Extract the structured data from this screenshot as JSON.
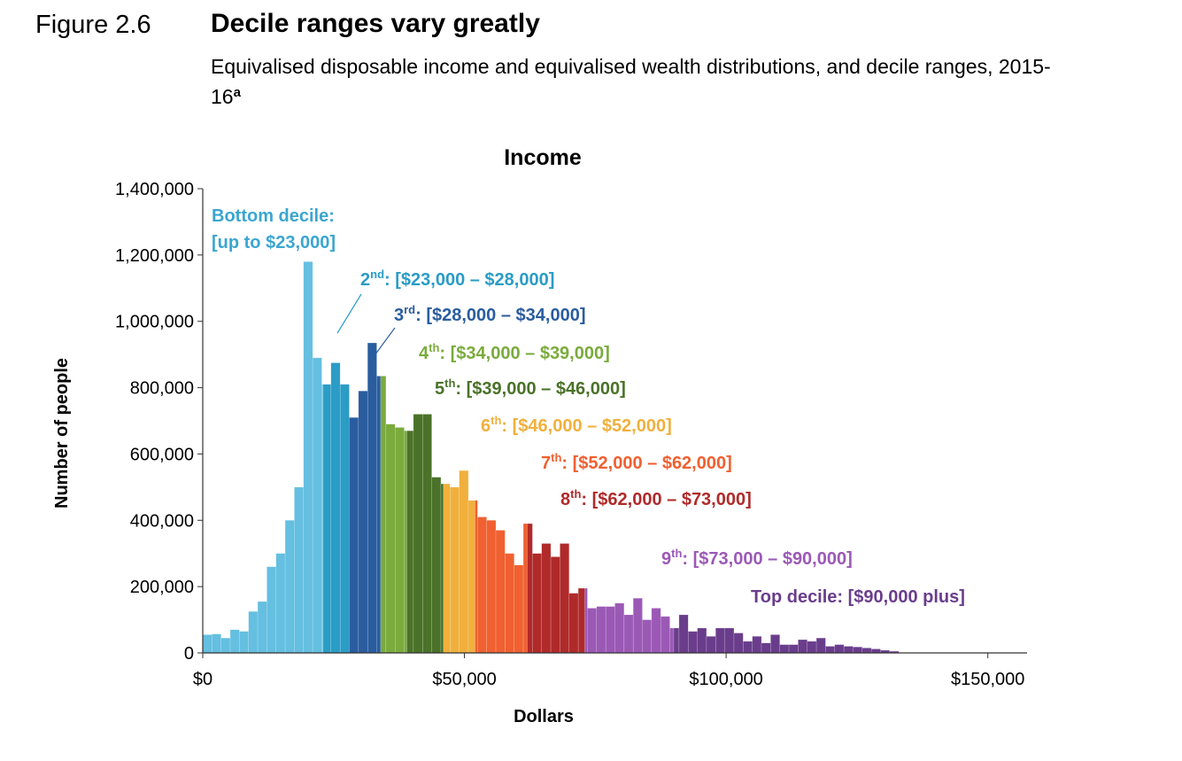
{
  "figure": {
    "number": "Figure 2.6",
    "title": "Decile ranges vary greatly",
    "subtitle": "Equivalised disposable income and equivalised wealth distributions, and decile ranges, 2015-16",
    "footnote_marker": "a"
  },
  "chart_data": {
    "type": "bar",
    "title": "Income",
    "xlabel": "Dollars",
    "ylabel": "Number of people",
    "xlim": [
      0,
      157500
    ],
    "ylim": [
      0,
      1400000
    ],
    "bin_width": 1750,
    "x_ticks": [
      {
        "value": 0,
        "label": "$0"
      },
      {
        "value": 50000,
        "label": "$50,000"
      },
      {
        "value": 100000,
        "label": "$100,000"
      },
      {
        "value": 150000,
        "label": "$150,000"
      }
    ],
    "y_ticks": [
      {
        "value": 0,
        "label": "0"
      },
      {
        "value": 200000,
        "label": "200,000"
      },
      {
        "value": 400000,
        "label": "400,000"
      },
      {
        "value": 600000,
        "label": "600,000"
      },
      {
        "value": 800000,
        "label": "800,000"
      },
      {
        "value": 1000000,
        "label": "1,000,000"
      },
      {
        "value": 1200000,
        "label": "1,200,000"
      },
      {
        "value": 1400000,
        "label": "1,400,000"
      }
    ],
    "deciles": [
      {
        "name": "Bottom decile",
        "range": "[up to $23,000]",
        "start": 0,
        "end": 23000,
        "color": "#64bfe0"
      },
      {
        "name": "2nd",
        "range": "[$23,000 – $28,000]",
        "start": 23000,
        "end": 28000,
        "color": "#2a9cc6"
      },
      {
        "name": "3rd",
        "range": "[$28,000 – $34,000]",
        "start": 28000,
        "end": 34000,
        "color": "#2a5d9f"
      },
      {
        "name": "4th",
        "range": "[$34,000 – $39,000]",
        "start": 34000,
        "end": 39000,
        "color": "#7aab3c"
      },
      {
        "name": "5th",
        "range": "[$39,000 – $46,000]",
        "start": 39000,
        "end": 46000,
        "color": "#4a7228"
      },
      {
        "name": "6th",
        "range": "[$46,000 – $52,000]",
        "start": 46000,
        "end": 52000,
        "color": "#f1b03c"
      },
      {
        "name": "7th",
        "range": "[$52,000 – $62,000]",
        "start": 52000,
        "end": 62000,
        "color": "#f06030"
      },
      {
        "name": "8th",
        "range": "[$62,000 – $73,000]",
        "start": 62000,
        "end": 73000,
        "color": "#b02a2a"
      },
      {
        "name": "9th",
        "range": "[$73,000 – $90,000]",
        "start": 73000,
        "end": 90000,
        "color": "#9b59b6"
      },
      {
        "name": "Top decile",
        "range": "[$90,000 plus]",
        "start": 90000,
        "end": 160000,
        "color": "#6a3d8c"
      }
    ],
    "decile_labels": [
      {
        "prefix": "Bottom decile:",
        "sup": "",
        "text": "[up to $23,000]",
        "color": "#3aa6d0"
      },
      {
        "prefix": "2",
        "sup": "nd",
        "text": ": [$23,000 – $28,000]",
        "color": "#2a9cc6"
      },
      {
        "prefix": "3",
        "sup": "rd",
        "text": ": [$28,000 – $34,000]",
        "color": "#2a5d9f"
      },
      {
        "prefix": "4",
        "sup": "th",
        "text": ": [$34,000 – $39,000]",
        "color": "#7aab3c"
      },
      {
        "prefix": "5",
        "sup": "th",
        "text": ": [$39,000 – $46,000]",
        "color": "#4a7228"
      },
      {
        "prefix": "6",
        "sup": "th",
        "text": ": [$46,000 – $52,000]",
        "color": "#f1b03c"
      },
      {
        "prefix": "7",
        "sup": "th",
        "text": ": [$52,000 – $62,000]",
        "color": "#f06030"
      },
      {
        "prefix": "8",
        "sup": "th",
        "text": ": [$62,000 – $73,000]",
        "color": "#b02a2a"
      },
      {
        "prefix": "9",
        "sup": "th",
        "text": ": [$73,000 – $90,000]",
        "color": "#9b59b6"
      },
      {
        "prefix": "Top decile: [$90,000 plus]",
        "sup": "",
        "text": "",
        "color": "#6a3d8c"
      }
    ],
    "values": [
      55000,
      57000,
      45000,
      70000,
      65000,
      125000,
      155000,
      260000,
      300000,
      400000,
      500000,
      1180000,
      890000,
      810000,
      875000,
      810000,
      710000,
      790000,
      935000,
      835000,
      690000,
      680000,
      670000,
      720000,
      720000,
      530000,
      510000,
      500000,
      550000,
      460000,
      410000,
      400000,
      370000,
      300000,
      265000,
      390000,
      300000,
      330000,
      290000,
      330000,
      180000,
      195000,
      135000,
      140000,
      140000,
      150000,
      115000,
      165000,
      100000,
      135000,
      110000,
      75000,
      115000,
      65000,
      75000,
      50000,
      75000,
      75000,
      60000,
      35000,
      50000,
      30000,
      55000,
      25000,
      25000,
      40000,
      35000,
      45000,
      20000,
      25000,
      20000,
      18000,
      15000,
      12000,
      8000,
      5000
    ]
  }
}
